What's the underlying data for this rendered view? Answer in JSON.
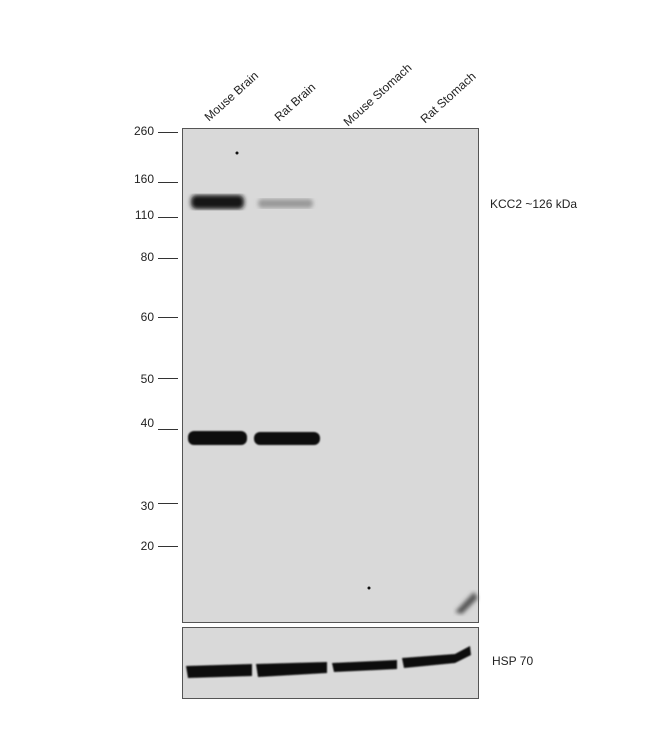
{
  "lanes": [
    "Mouse Brain",
    "Rat Brain",
    "Mouse Stomach",
    "Rat Stomach"
  ],
  "markers": [
    "260",
    "160",
    "110",
    "80",
    "60",
    "50",
    "40",
    "30",
    "20"
  ],
  "target_label": "KCC2 ~126 kDa",
  "loading_control_label": "HSP 70",
  "colors": {
    "membrane": "#d9d9d9",
    "band": "#111111"
  }
}
